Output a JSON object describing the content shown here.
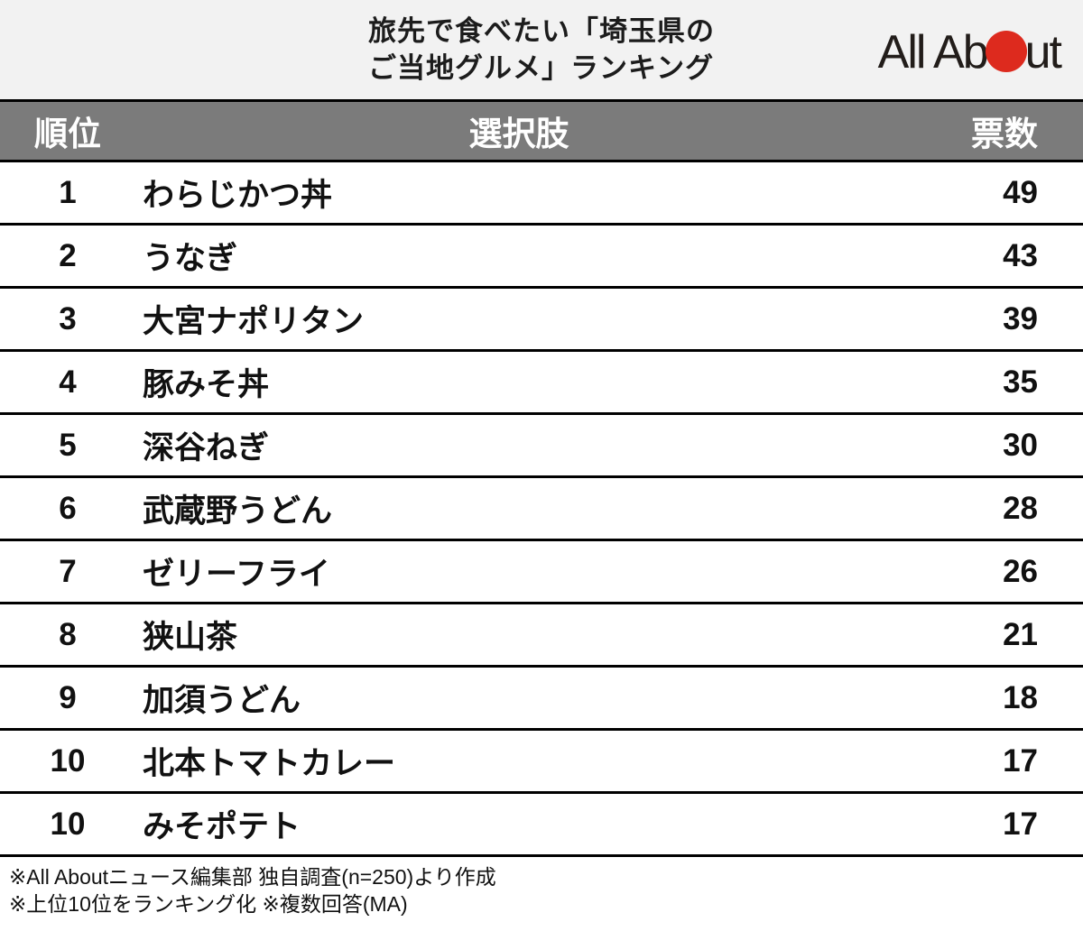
{
  "header": {
    "title_line1": "旅先で食べたい「埼玉県の",
    "title_line2": "ご当地グルメ」ランキング",
    "logo": {
      "name": "All About",
      "text_before_dot": "All Ab",
      "text_after_dot": "ut",
      "dot_color": "#dd2a1e",
      "text_color": "#221d1a"
    }
  },
  "table": {
    "columns": {
      "rank": "順位",
      "choice": "選択肢",
      "votes": "票数"
    },
    "header_bg": "#7b7b7b",
    "border_color": "#000000",
    "rows": [
      {
        "rank": "1",
        "choice": "わらじかつ丼",
        "votes": "49"
      },
      {
        "rank": "2",
        "choice": "うなぎ",
        "votes": "43"
      },
      {
        "rank": "3",
        "choice": "大宮ナポリタン",
        "votes": "39"
      },
      {
        "rank": "4",
        "choice": "豚みそ丼",
        "votes": "35"
      },
      {
        "rank": "5",
        "choice": "深谷ねぎ",
        "votes": "30"
      },
      {
        "rank": "6",
        "choice": "武蔵野うどん",
        "votes": "28"
      },
      {
        "rank": "7",
        "choice": "ゼリーフライ",
        "votes": "26"
      },
      {
        "rank": "8",
        "choice": "狭山茶",
        "votes": "21"
      },
      {
        "rank": "9",
        "choice": "加須うどん",
        "votes": "18"
      },
      {
        "rank": "10",
        "choice": "北本トマトカレー",
        "votes": "17"
      },
      {
        "rank": "10",
        "choice": "みそポテト",
        "votes": "17"
      }
    ]
  },
  "footer": {
    "line1": "※All Aboutニュース編集部 独自調査(n=250)より作成",
    "line2": "※上位10位をランキング化 ※複数回答(MA)"
  },
  "chart_data": {
    "type": "table",
    "title": "旅先で食べたい「埼玉県のご当地グルメ」ランキング",
    "columns": [
      "順位",
      "選択肢",
      "票数"
    ],
    "categories": [
      "わらじかつ丼",
      "うなぎ",
      "大宮ナポリタン",
      "豚みそ丼",
      "深谷ねぎ",
      "武蔵野うどん",
      "ゼリーフライ",
      "狭山茶",
      "加須うどん",
      "北本トマトカレー",
      "みそポテト"
    ],
    "ranks": [
      1,
      2,
      3,
      4,
      5,
      6,
      7,
      8,
      9,
      10,
      10
    ],
    "values": [
      49,
      43,
      39,
      35,
      30,
      28,
      26,
      21,
      18,
      17,
      17
    ],
    "notes": [
      "※All Aboutニュース編集部 独自調査(n=250)より作成",
      "※上位10位をランキング化 ※複数回答(MA)"
    ],
    "sample_size": 250
  }
}
